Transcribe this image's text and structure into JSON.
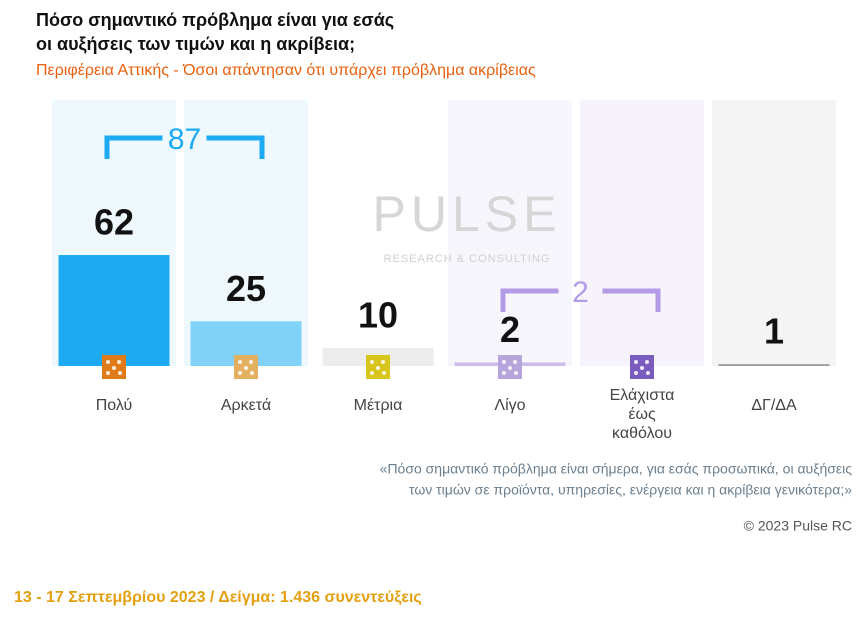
{
  "chart_data": {
    "type": "bar",
    "title": "Πόσο σημαντικό πρόβλημα είναι για εσάς",
    "title_line2": "οι αυξήσεις των τιμών και η ακρίβεια;",
    "subtitle": "Περιφέρεια Αττικής - Όσοι απάντησαν ότι υπάρχει πρόβλημα ακρίβειας",
    "categories": [
      "Πολύ",
      "Αρκετά",
      "Μέτρια",
      "Λίγο",
      "Ελάχιστα έως καθόλου",
      "ΔΓ/ΔΑ"
    ],
    "values": [
      62,
      25,
      10,
      2,
      null,
      1
    ],
    "colors": [
      "#1eaaf2",
      "#82d2f8",
      "#ececec",
      "#cbbcec",
      "#b8a6e6",
      "#9a9a9a"
    ],
    "column_colors": [
      "#eef8fd",
      "#eef8fd",
      "#ffffff",
      "#f8f6fd",
      "#f6f3fc",
      "#f4f4f4"
    ],
    "icon_colors": [
      "#e07b1a",
      "#e3b060",
      "#d8c61c",
      "#b6a5dd",
      "#7a5cbf",
      null
    ],
    "groups": [
      {
        "value": 87,
        "categories": [
          "Πολύ",
          "Αρκετά"
        ],
        "color": "#1eaaf2"
      },
      {
        "value": 2,
        "categories": [
          "Λίγο",
          "Ελάχιστα έως καθόλου"
        ],
        "color": "#b39be8"
      }
    ],
    "watermark": "PULSE",
    "watermark_sub": "RESEARCH & CONSULTING",
    "question": "«Πόσο σημαντικό πρόβλημα είναι σήμερα, για εσάς προσωπικά, οι αυξήσεις",
    "question_line2": "των τιμών σε προϊόντα, υπηρεσίες, ενέργεια και η ακρίβεια γενικότερα;»",
    "copyright": "© 2023 Pulse RC",
    "sample": "13 - 17  Σεπτεμβρίου  2023  /  Δείγμα:  1.436 συνεντεύξεις"
  }
}
